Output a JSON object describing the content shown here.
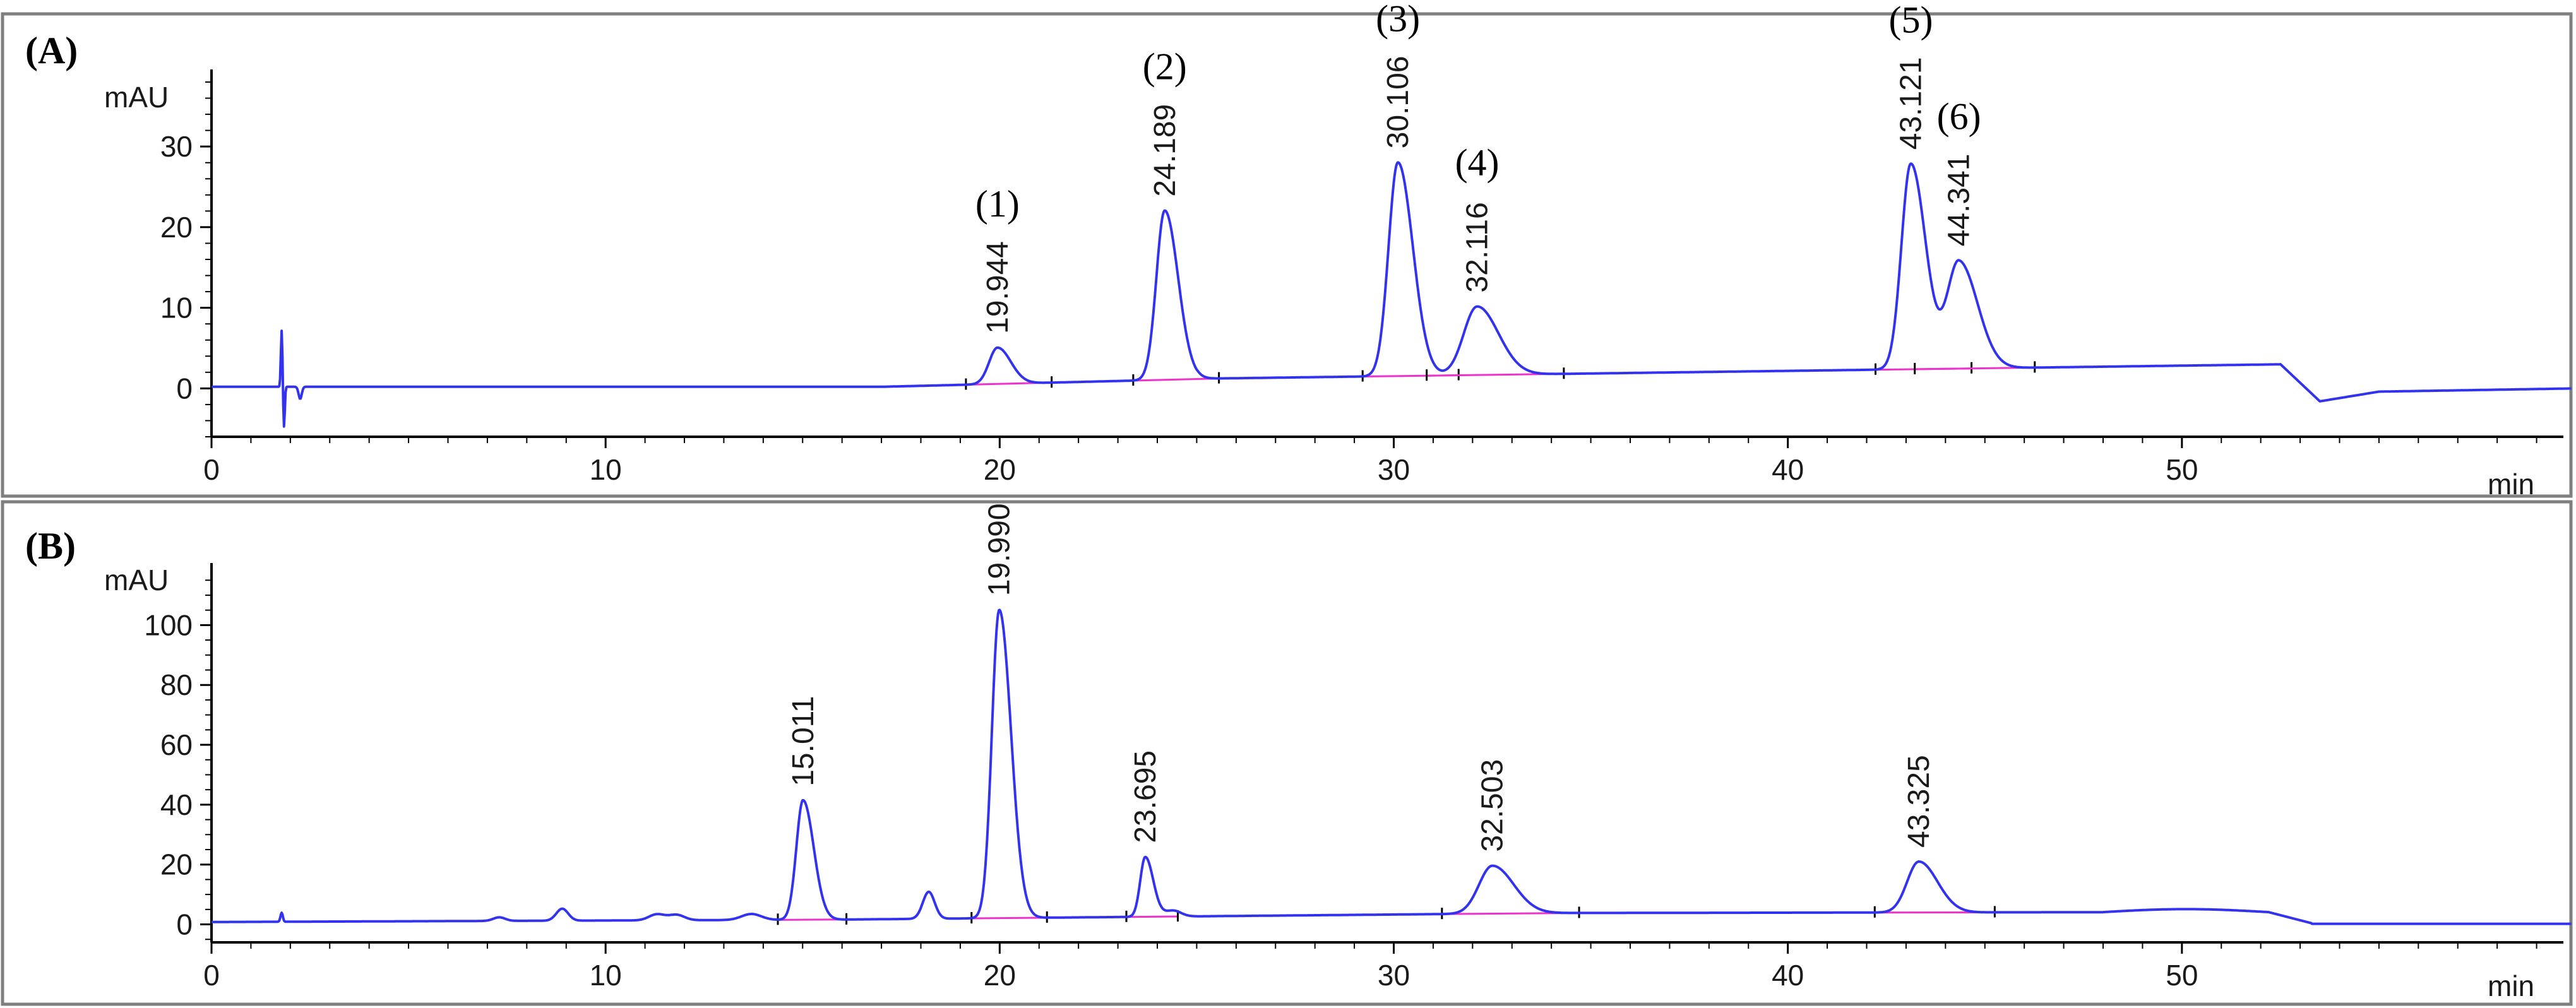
{
  "chart_data": [
    {
      "type": "line",
      "panel_label": "(A)",
      "ylabel": "mAU",
      "xlabel": "min",
      "xlim": [
        0,
        60
      ],
      "ylim": [
        -6,
        38
      ],
      "x_ticks": [
        0,
        10,
        20,
        30,
        40,
        50
      ],
      "y_ticks": [
        0,
        10,
        20,
        30
      ],
      "peaks": [
        {
          "rt": 19.944,
          "height": 4.5,
          "width": 0.25,
          "rt_label": "19.944",
          "number_label": "(1)"
        },
        {
          "rt": 24.189,
          "height": 21,
          "width": 0.25,
          "rt_label": "24.189",
          "number_label": "(2)"
        },
        {
          "rt": 30.106,
          "height": 26.5,
          "width": 0.28,
          "rt_label": "30.106",
          "number_label": "(3)"
        },
        {
          "rt": 32.116,
          "height": 8.5,
          "width": 0.4,
          "rt_label": "32.116",
          "number_label": "(4)"
        },
        {
          "rt": 43.121,
          "height": 25.5,
          "width": 0.28,
          "rt_label": "43.121",
          "number_label": "(5)"
        },
        {
          "rt": 44.341,
          "height": 13.3,
          "width": 0.35,
          "rt_label": "44.341",
          "number_label": "(6)"
        }
      ]
    },
    {
      "type": "line",
      "panel_label": "(B)",
      "ylabel": "mAU",
      "xlabel": "min",
      "xlim": [
        0,
        60
      ],
      "ylim": [
        -6,
        118
      ],
      "x_ticks": [
        0,
        10,
        20,
        30,
        40,
        50
      ],
      "y_ticks": [
        0,
        20,
        40,
        60,
        80,
        100
      ],
      "peaks": [
        {
          "rt": 15.011,
          "height": 40,
          "width": 0.2,
          "rt_label": "15.011"
        },
        {
          "rt": 19.99,
          "height": 103,
          "width": 0.22,
          "rt_label": "19.990"
        },
        {
          "rt": 23.695,
          "height": 20,
          "width": 0.15,
          "rt_label": "23.695"
        },
        {
          "rt": 32.503,
          "height": 16,
          "width": 0.4,
          "rt_label": "32.503"
        },
        {
          "rt": 43.325,
          "height": 17,
          "width": 0.35,
          "rt_label": "43.325"
        }
      ]
    }
  ]
}
